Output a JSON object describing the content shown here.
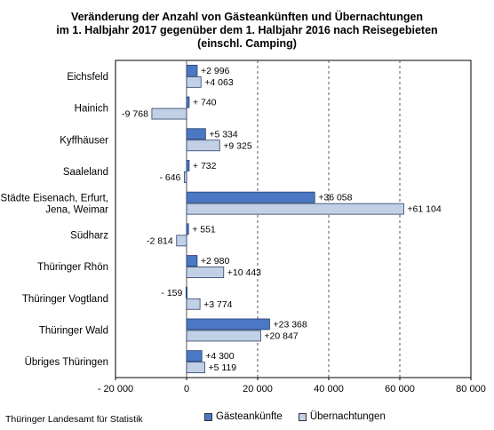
{
  "title_lines": [
    "Veränderung der Anzahl von Gästeankünften und Übernachtungen",
    "im 1. Halbjahr 2017 gegenüber dem 1. Halbjahr 2016 nach Reisegebieten",
    "(einschl. Camping)"
  ],
  "source": "Thüringer Landesamt für Statistik",
  "colors": {
    "gaesteankuenfte": "#4a78c5",
    "uebernachtungen": "#c2d0e6",
    "outline": "#2b3f6b",
    "grid": "#555555"
  },
  "chart_data": {
    "type": "bar",
    "orientation": "horizontal",
    "title": "Veränderung der Anzahl von Gästeankünften und Übernachtungen im 1. Halbjahr 2017 gegenüber dem 1. Halbjahr 2016 nach Reisegebieten (einschl. Camping)",
    "categories": [
      [
        "Eichsfeld"
      ],
      [
        "Hainich"
      ],
      [
        "Kyffhäuser"
      ],
      [
        "Saaleland"
      ],
      [
        "Städte Eisenach, Erfurt,",
        "Jena, Weimar"
      ],
      [
        "Südharz"
      ],
      [
        "Thüringer Rhön"
      ],
      [
        "Thüringer Vogtland"
      ],
      [
        "Thüringer Wald"
      ],
      [
        "Übriges Thüringen"
      ]
    ],
    "series": [
      {
        "name": "Gästeankünfte",
        "values": [
          2996,
          740,
          5334,
          732,
          36058,
          551,
          2980,
          -159,
          23368,
          4300
        ],
        "labels": [
          "+2 996",
          "+ 740",
          "+5 334",
          "+ 732",
          "+36 058",
          "+ 551",
          "+2 980",
          "- 159",
          "+23 368",
          "+4 300"
        ]
      },
      {
        "name": "Übernachtungen",
        "values": [
          4063,
          -9768,
          9325,
          -646,
          61104,
          -2814,
          10443,
          3774,
          20847,
          5119
        ],
        "labels": [
          "+4 063",
          "-9 768",
          "+9 325",
          "- 646",
          "+61 104",
          "-2 814",
          "+10 443",
          "+3 774",
          "+20 847",
          "+5 119"
        ]
      }
    ],
    "xlim": [
      -20000,
      80000
    ],
    "xticks": [
      -20000,
      0,
      20000,
      40000,
      60000,
      80000
    ],
    "xtick_labels": [
      "- 20 000",
      "0",
      "20 000",
      "40 000",
      "60 000",
      "80 000"
    ],
    "grid": "vertical dashed",
    "legend_position": "bottom"
  }
}
